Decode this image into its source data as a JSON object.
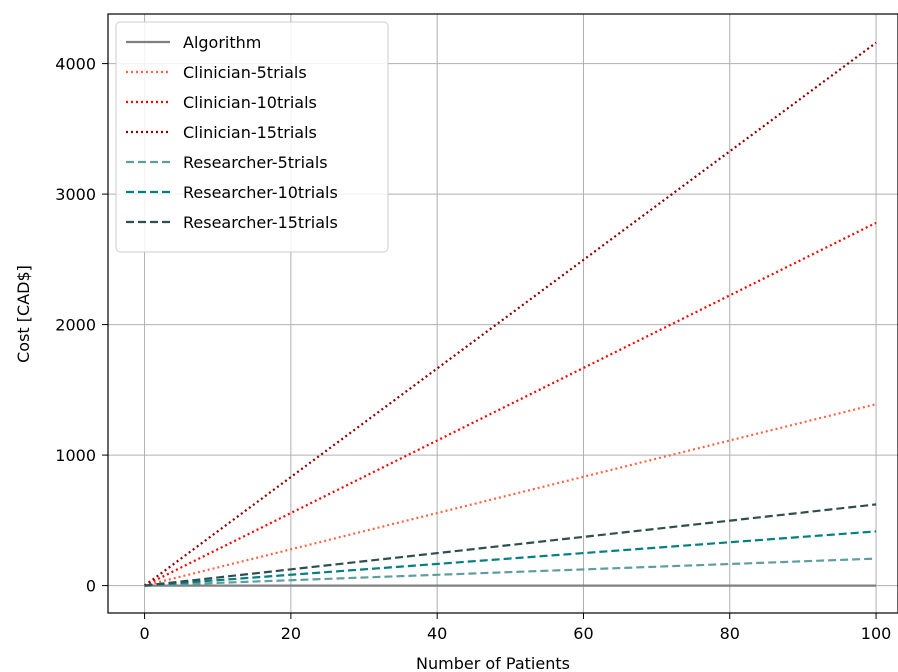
{
  "chart_data": {
    "type": "line",
    "title": "",
    "xlabel": "Number of Patients",
    "ylabel": "Cost [CAD$]",
    "xlim": [
      -5,
      103
    ],
    "ylim": [
      -210,
      4380
    ],
    "xticks": [
      0,
      20,
      40,
      60,
      80,
      100
    ],
    "yticks": [
      0,
      1000,
      2000,
      3000,
      4000
    ],
    "x_tick_labels": [
      "0",
      "20",
      "40",
      "60",
      "80",
      "100"
    ],
    "y_tick_labels": [
      "0",
      "1000",
      "2000",
      "3000",
      "4000"
    ],
    "grid": true,
    "legend_position": "upper-left",
    "series": [
      {
        "name": "Algorithm",
        "color": "#808080",
        "style": "solid",
        "x": [
          0,
          100
        ],
        "y": [
          0,
          0
        ]
      },
      {
        "name": "Clinician-5trials",
        "color": "#ff6347",
        "style": "dotted",
        "x": [
          0,
          100
        ],
        "y": [
          0,
          1390
        ]
      },
      {
        "name": "Clinician-10trials",
        "color": "#ff0000",
        "style": "dotted",
        "x": [
          0,
          100
        ],
        "y": [
          0,
          2780
        ]
      },
      {
        "name": "Clinician-15trials",
        "color": "#8b0000",
        "style": "dotted",
        "x": [
          0,
          100
        ],
        "y": [
          0,
          4160
        ]
      },
      {
        "name": "Researcher-5trials",
        "color": "#5f9ea0",
        "style": "dashed",
        "x": [
          0,
          100
        ],
        "y": [
          0,
          207
        ]
      },
      {
        "name": "Researcher-10trials",
        "color": "#008080",
        "style": "dashed",
        "x": [
          0,
          100
        ],
        "y": [
          0,
          415
        ]
      },
      {
        "name": "Researcher-15trials",
        "color": "#2f4f4f",
        "style": "dashed",
        "x": [
          0,
          100
        ],
        "y": [
          0,
          622
        ]
      }
    ]
  }
}
